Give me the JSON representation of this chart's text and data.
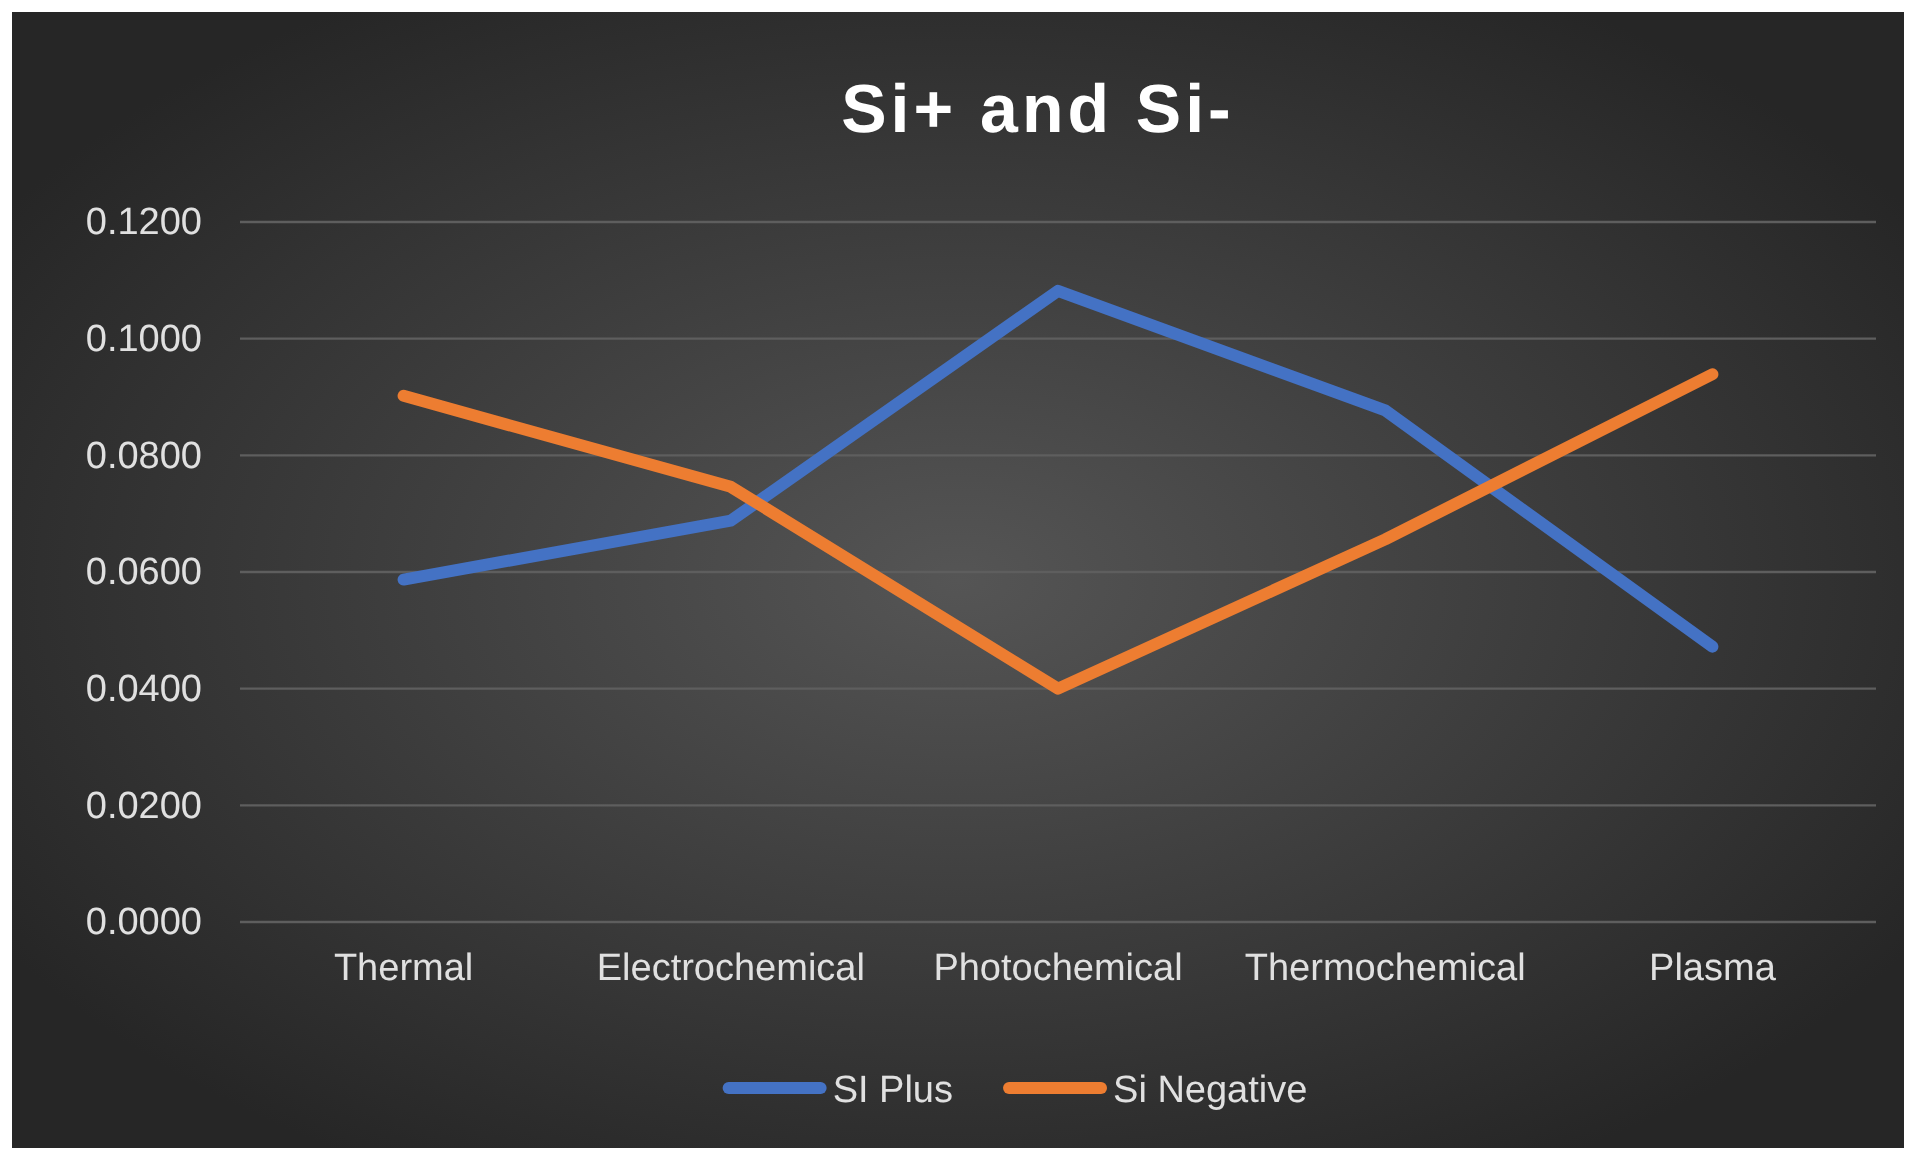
{
  "chart_data": {
    "type": "line",
    "title": "Si+ and Si-",
    "categories": [
      "Thermal",
      "Electrochemical",
      "Photochemical",
      "Thermochemical",
      "Plasma"
    ],
    "series": [
      {
        "name": "SI Plus",
        "color": "#4472c4",
        "values": [
          0.0587,
          0.0688,
          0.1082,
          0.0877,
          0.0472
        ]
      },
      {
        "name": "Si Negative",
        "color": "#ed7d31",
        "values": [
          0.0902,
          0.0746,
          0.04,
          0.0656,
          0.0939
        ]
      }
    ],
    "ylim": [
      0,
      0.12
    ],
    "yticks": [
      {
        "value": 0,
        "label": "0.0000"
      },
      {
        "value": 0.02,
        "label": "0.0200"
      },
      {
        "value": 0.04,
        "label": "0.0400"
      },
      {
        "value": 0.06,
        "label": "0.0600"
      },
      {
        "value": 0.08,
        "label": "0.0800"
      },
      {
        "value": 0.1,
        "label": "0.1000"
      },
      {
        "value": 0.12,
        "label": "0.1200"
      }
    ],
    "grid": "y",
    "legend": "bottom",
    "marker": "none",
    "line_style": "solid"
  }
}
